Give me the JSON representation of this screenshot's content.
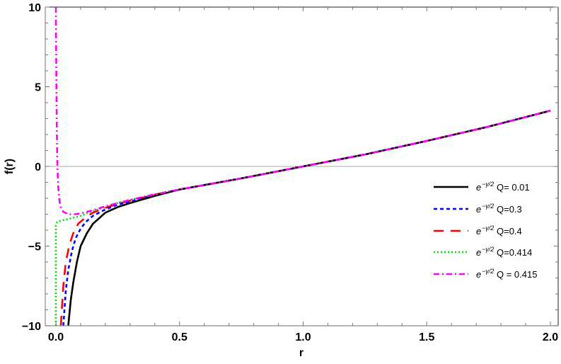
{
  "chart_data": {
    "type": "line",
    "title": "",
    "xlabel": "r",
    "ylabel": "f(r)",
    "xlim": [
      0.0,
      2.0
    ],
    "ylim": [
      -10,
      10
    ],
    "grid": false,
    "zero_line": true,
    "legend_position": "right-center",
    "x_ticks": [
      {
        "value": 0.0,
        "label": "0.0"
      },
      {
        "value": 0.5,
        "label": "0.5"
      },
      {
        "value": 1.0,
        "label": "1.0"
      },
      {
        "value": 1.5,
        "label": "1.5"
      },
      {
        "value": 2.0,
        "label": "2.0"
      }
    ],
    "y_ticks": [
      {
        "value": -10,
        "label": "−10"
      },
      {
        "value": -5,
        "label": "−5"
      },
      {
        "value": 0,
        "label": "0"
      },
      {
        "value": 5,
        "label": "5"
      },
      {
        "value": 10,
        "label": "10"
      }
    ],
    "series": [
      {
        "name": "e^{-γ/2} Q= 0.01",
        "legend_prefix": "e",
        "legend_sup": "−γ/2",
        "legend_suffix": " Q= 0.01",
        "color": "#000000",
        "style": "solid",
        "x": [
          0.05,
          0.06,
          0.07,
          0.085,
          0.1,
          0.125,
          0.15,
          0.2,
          0.25,
          0.3,
          0.4,
          0.5,
          0.75,
          1.0,
          1.25,
          1.5,
          1.75,
          2.0
        ],
        "y": [
          -10,
          -8.4,
          -7.3,
          -6.0,
          -5.0,
          -4.2,
          -3.6,
          -2.9,
          -2.55,
          -2.3,
          -1.85,
          -1.45,
          -0.75,
          0.0,
          0.75,
          1.6,
          2.5,
          3.5
        ]
      },
      {
        "name": "e^{-γ/2} Q=0.3",
        "legend_prefix": "e",
        "legend_sup": "−γ/2",
        "legend_suffix": " Q=0.3",
        "color": "#0000ff",
        "style": "dashed",
        "x": [
          0.03,
          0.04,
          0.05,
          0.065,
          0.08,
          0.1,
          0.12,
          0.15,
          0.2,
          0.25,
          0.3,
          0.4,
          0.5,
          0.75,
          1.0,
          1.25,
          1.5,
          1.75,
          2.0
        ],
        "y": [
          -10,
          -7.8,
          -6.5,
          -5.3,
          -4.5,
          -3.9,
          -3.5,
          -3.1,
          -2.7,
          -2.4,
          -2.2,
          -1.8,
          -1.45,
          -0.75,
          0.0,
          0.75,
          1.6,
          2.5,
          3.5
        ]
      },
      {
        "name": "e^{-γ/2} Q=0.4",
        "legend_prefix": "e",
        "legend_sup": "−γ/2",
        "legend_suffix": " Q=0.4",
        "color": "#ff0000",
        "style": "long-dashed",
        "x": [
          0.02,
          0.03,
          0.04,
          0.055,
          0.07,
          0.09,
          0.12,
          0.15,
          0.2,
          0.25,
          0.3,
          0.4,
          0.5,
          0.75,
          1.0,
          1.25,
          1.5,
          1.75,
          2.0
        ],
        "y": [
          -10,
          -7.5,
          -6.0,
          -4.9,
          -4.2,
          -3.6,
          -3.2,
          -2.9,
          -2.6,
          -2.35,
          -2.15,
          -1.78,
          -1.45,
          -0.75,
          0.0,
          0.75,
          1.6,
          2.5,
          3.5
        ]
      },
      {
        "name": "e^{-γ/2} Q=0.414",
        "legend_prefix": "e",
        "legend_sup": "−γ/2",
        "legend_suffix": " Q=0.414",
        "color": "#00e000",
        "style": "dotted",
        "x": [
          0.0,
          0.0,
          0.005,
          0.02,
          0.05,
          0.1,
          0.15,
          0.2,
          0.25,
          0.3,
          0.4,
          0.5,
          0.75,
          1.0,
          1.25,
          1.5,
          1.75,
          2.0
        ],
        "y": [
          -10,
          -3.7,
          -3.5,
          -3.4,
          -3.3,
          -3.1,
          -2.8,
          -2.55,
          -2.3,
          -2.1,
          -1.75,
          -1.45,
          -0.75,
          0.0,
          0.75,
          1.6,
          2.5,
          3.5
        ]
      },
      {
        "name": "e^{-γ/2} Q = 0.415",
        "legend_prefix": "e",
        "legend_sup": "−γ/2",
        "legend_suffix": " Q = 0.415",
        "color": "#ff00ff",
        "style": "dash-dot",
        "x": [
          0.0,
          0.002,
          0.004,
          0.006,
          0.01,
          0.015,
          0.02,
          0.03,
          0.05,
          0.075,
          0.1,
          0.15,
          0.2,
          0.25,
          0.3,
          0.4,
          0.5,
          0.75,
          1.0,
          1.25,
          1.5,
          1.75,
          2.0
        ],
        "y": [
          10,
          5.0,
          2.0,
          0.0,
          -1.4,
          -2.2,
          -2.55,
          -2.85,
          -3.0,
          -3.0,
          -2.95,
          -2.75,
          -2.5,
          -2.3,
          -2.1,
          -1.75,
          -1.45,
          -0.75,
          0.0,
          0.75,
          1.6,
          2.5,
          3.5
        ]
      }
    ]
  }
}
